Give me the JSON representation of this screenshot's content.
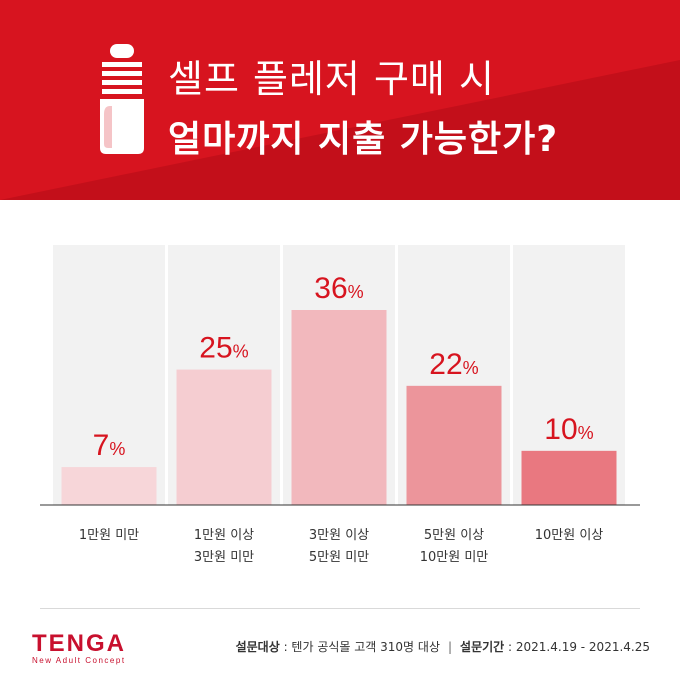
{
  "header": {
    "title_line1": "셀프 플레저 구매 시",
    "title_line2": "얼마까지 지출 가능한가?",
    "bg_color": "#d7141f"
  },
  "chart_data": {
    "type": "bar",
    "categories": [
      [
        "1만원 미만"
      ],
      [
        "1만원 이상",
        "3만원 미만"
      ],
      [
        "3만원 이상",
        "5만원 미만"
      ],
      [
        "5만원 이상",
        "10만원 미만"
      ],
      [
        "10만원 이상"
      ]
    ],
    "values": [
      7,
      25,
      36,
      22,
      10
    ],
    "value_labels": [
      "7",
      "25",
      "36",
      "22",
      "10"
    ],
    "unit": "%",
    "ylim": [
      0,
      48
    ],
    "bar_colors": [
      "#f7d6d9",
      "#f5cdd1",
      "#f2b8bd",
      "#ec959b",
      "#e97880"
    ],
    "label_color": "#d7141f",
    "grid": false
  },
  "footer": {
    "brand": "TENGA",
    "brand_tagline": "New Adult Concept",
    "survey_target_label": "설문대상",
    "survey_target": " : 텐가 공식몰 고객 310명 대상",
    "separator": "|",
    "survey_period_label": "설문기간",
    "survey_period": " : 2021.4.19 - 2021.4.25"
  }
}
